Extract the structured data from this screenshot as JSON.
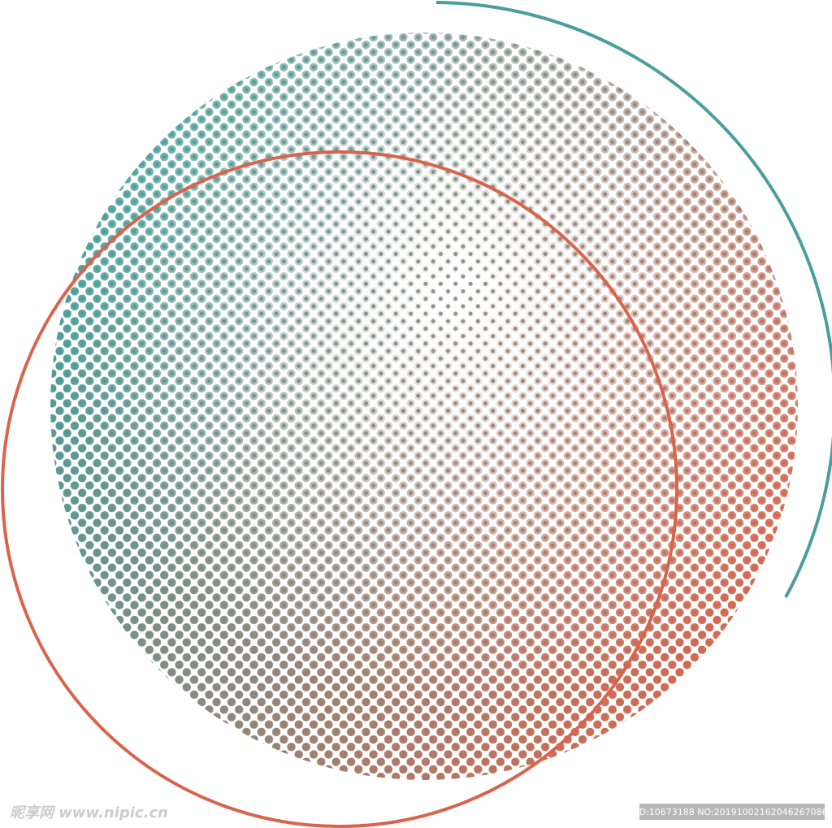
{
  "watermark": {
    "site": "昵享网 www.nipic.cn",
    "id": "ID:10673188 NO:20191002162046267086"
  }
}
